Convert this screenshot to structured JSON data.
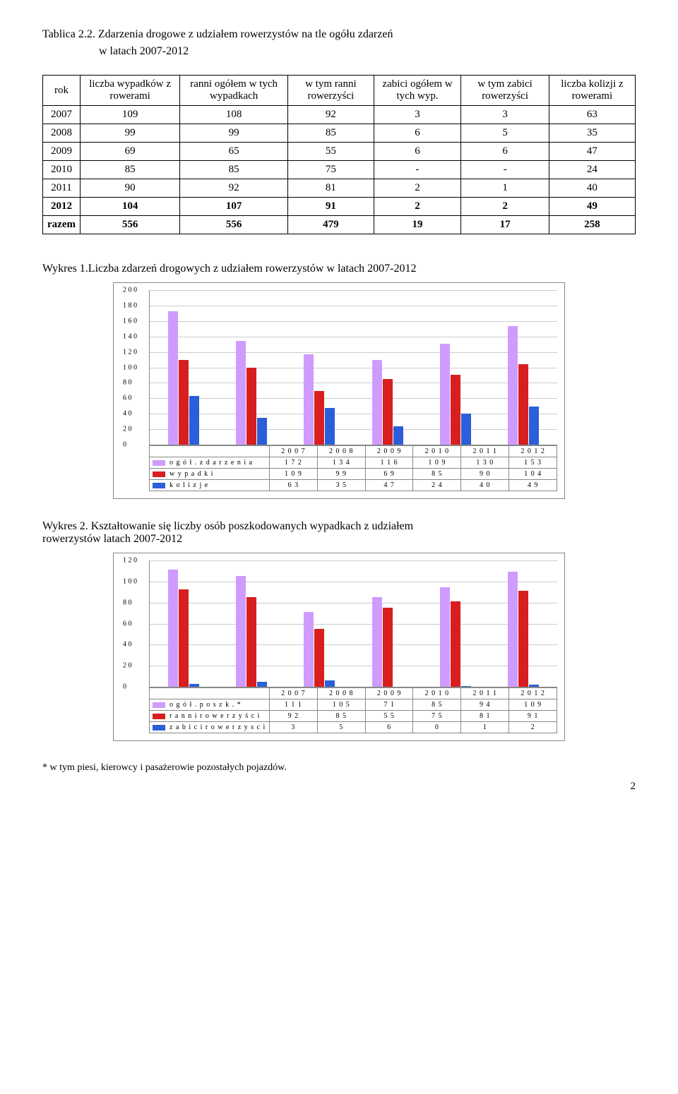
{
  "table2": {
    "caption_line1": "Tablica 2.2. Zdarzenia drogowe z udziałem rowerzystów na tle ogółu zdarzeń",
    "caption_line2": "w latach 2007-2012",
    "columns": [
      "rok",
      "liczba wypadków z rowerami",
      "ranni ogółem w tych wypadkach",
      "w tym ranni rowerzyści",
      "zabici ogółem w tych wyp.",
      "w tym zabici rowerzyści",
      "liczba kolizji z rowerami"
    ],
    "rows": [
      [
        "2007",
        "109",
        "108",
        "92",
        "3",
        "3",
        "63"
      ],
      [
        "2008",
        "99",
        "99",
        "85",
        "6",
        "5",
        "35"
      ],
      [
        "2009",
        "69",
        "65",
        "55",
        "6",
        "6",
        "47"
      ],
      [
        "2010",
        "85",
        "85",
        "75",
        "-",
        "-",
        "24"
      ],
      [
        "2011",
        "90",
        "92",
        "81",
        "2",
        "1",
        "40"
      ]
    ],
    "bold_rows": [
      [
        "2012",
        "104",
        "107",
        "91",
        "2",
        "2",
        "49"
      ],
      [
        "razem",
        "556",
        "556",
        "479",
        "19",
        "17",
        "258"
      ]
    ],
    "bold_indices": [
      5,
      6
    ]
  },
  "chart1": {
    "title": "Wykres 1.Liczba zdarzeń drogowych z udziałem rowerzystów w latach 2007-2012",
    "ymax": 200,
    "ytick": 20,
    "colors": {
      "series0": "#cf9bff",
      "series1": "#d81e1e",
      "series2": "#2b5fd9"
    },
    "categories": [
      "2 0 0 7",
      "2 0 0 8",
      "2 0 0 9",
      "2 0 1 0",
      "2 0 1 1",
      "2 0 1 2"
    ],
    "series_labels": [
      "o g ó ł .  z d a r z e n i a",
      "w  y p a d k i",
      "k o l i z j e"
    ],
    "values": [
      [
        172,
        134,
        116,
        109,
        130,
        153
      ],
      [
        109,
        99,
        69,
        85,
        90,
        104
      ],
      [
        63,
        35,
        47,
        24,
        40,
        49
      ]
    ],
    "legend_values": [
      [
        "1 7 2",
        "1 3 4",
        "1 1 6",
        "1 0 9",
        "1 3 0",
        "1 5 3"
      ],
      [
        "1 0 9",
        "9 9",
        "6 9",
        "8 5",
        "9 0",
        "1 0 4"
      ],
      [
        "6 3",
        "3 5",
        "4 7",
        "2 4",
        "4 0",
        "4 9"
      ]
    ]
  },
  "chart2": {
    "title_line1": "Wykres 2. Kształtowanie się liczby osób poszkodowanych wypadkach z udziałem",
    "title_line2": "rowerzystów      latach 2007-2012",
    "ymax": 120,
    "ytick": 20,
    "colors": {
      "series0": "#cf9bff",
      "series1": "#d81e1e",
      "series2": "#2b5fd9"
    },
    "categories": [
      "2 0 0 7",
      "2 0 0 8",
      "2 0 0 9",
      "2 0 1 0",
      "2 0 1 1",
      "2 0 1 2"
    ],
    "series_labels": [
      "o g ó ł . p o s z k . *",
      "r a n n i  r o w  e r z y ś c i",
      "z a b i c i r o w  e r z y s c i"
    ],
    "values": [
      [
        111,
        105,
        71,
        85,
        94,
        109
      ],
      [
        92,
        85,
        55,
        75,
        81,
        91
      ],
      [
        3,
        5,
        6,
        0,
        1,
        2
      ]
    ],
    "legend_values": [
      [
        "1 1 1",
        "1 0 5",
        "7 1",
        "8 5",
        "9 4",
        "1 0 9"
      ],
      [
        "9 2",
        "8 5",
        "5 5",
        "7 5",
        "8 1",
        "9 1"
      ],
      [
        "3",
        "5",
        "6",
        "0",
        "1",
        "2"
      ]
    ]
  },
  "footnote": "* w tym piesi, kierowcy i pasażerowie pozostałych pojazdów.",
  "page": "2"
}
